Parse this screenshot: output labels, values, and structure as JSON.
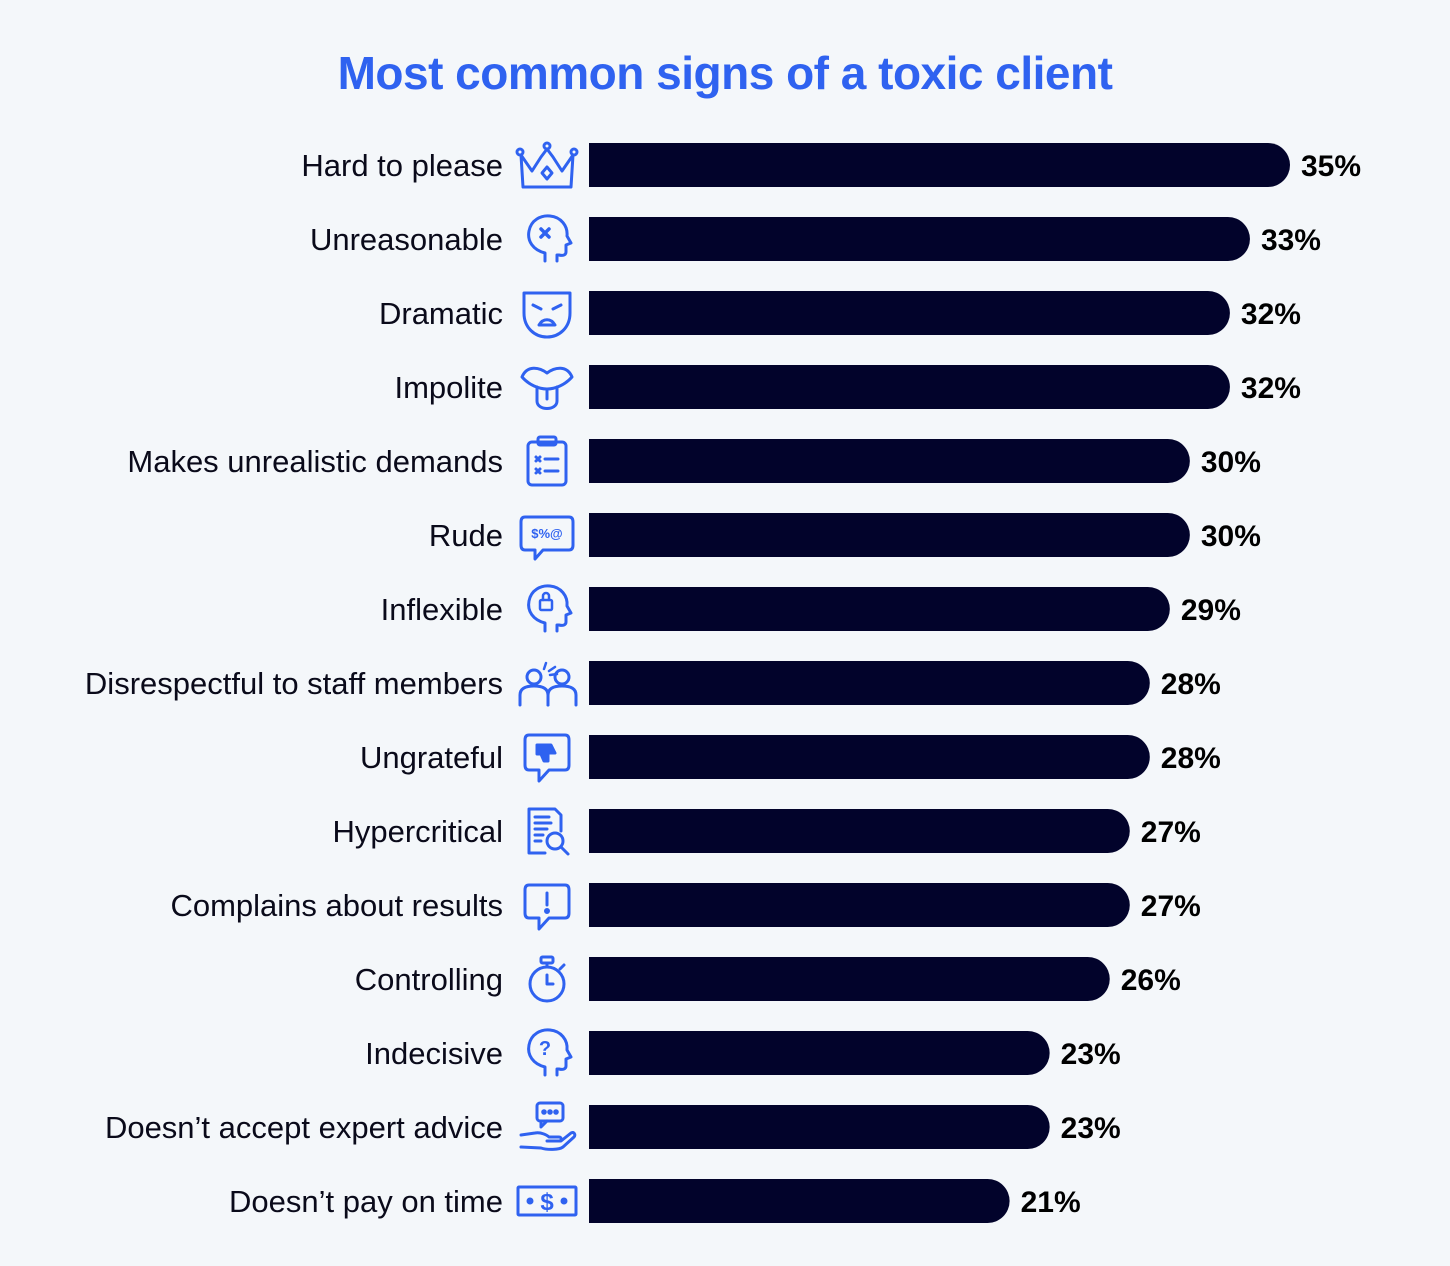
{
  "colors": {
    "accent": "#2f62f0",
    "bar": "#02032b",
    "text": "#0a0a1a",
    "background": "#f4f7fa"
  },
  "chart_data": {
    "type": "bar",
    "orientation": "horizontal",
    "title": "Most common signs of a toxic client",
    "categories": [
      "Hard to please",
      "Unreasonable",
      "Dramatic",
      "Impolite",
      "Makes unrealistic demands",
      "Rude",
      "Inflexible",
      "Disrespectful to staff members",
      "Ungrateful",
      "Hypercritical",
      "Complains about results",
      "Controlling",
      "Indecisive",
      "Doesn’t accept expert advice",
      "Doesn’t pay on time"
    ],
    "values": [
      35,
      33,
      32,
      32,
      30,
      30,
      29,
      28,
      28,
      27,
      27,
      26,
      23,
      23,
      21
    ],
    "value_labels": [
      "35%",
      "33%",
      "32%",
      "32%",
      "30%",
      "30%",
      "29%",
      "28%",
      "28%",
      "27%",
      "27%",
      "26%",
      "23%",
      "23%",
      "21%"
    ],
    "icons": [
      "crown-icon",
      "confused-head-icon",
      "drama-mask-icon",
      "tongue-out-icon",
      "checklist-icon",
      "swearing-bubble-icon",
      "locked-head-icon",
      "arguing-people-icon",
      "thumbs-down-bubble-icon",
      "document-search-icon",
      "exclamation-bubble-icon",
      "stopwatch-icon",
      "question-head-icon",
      "hand-chat-icon",
      "banknote-icon"
    ],
    "xlim": [
      0,
      35
    ],
    "grid": false,
    "legend": "none"
  }
}
